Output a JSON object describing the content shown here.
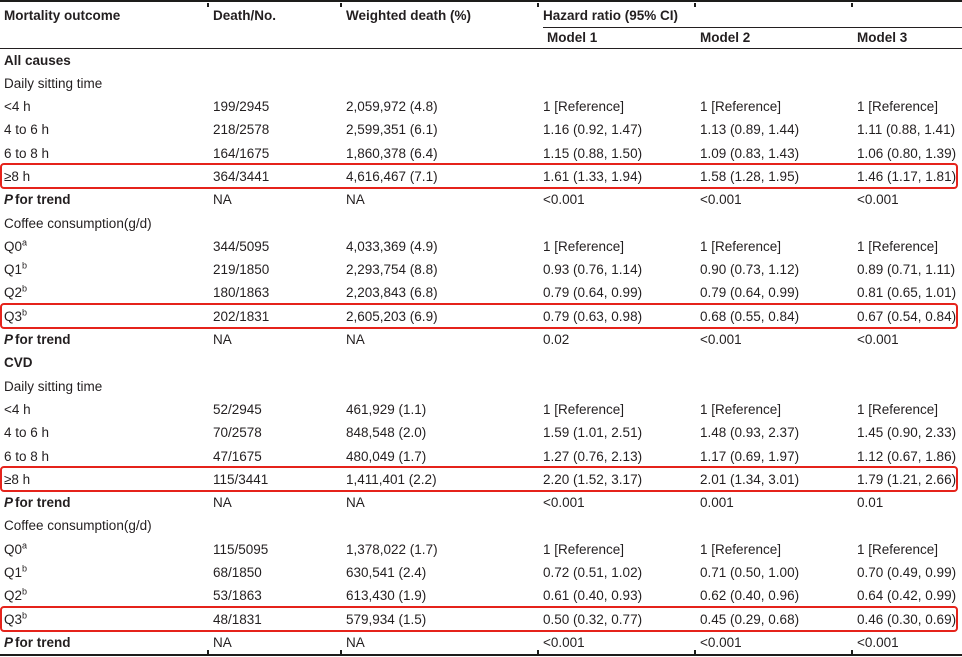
{
  "colors": {
    "text": "#231f20",
    "rule": "#1d1d1b",
    "highlight_border": "#e5231b",
    "background": "#ffffff"
  },
  "table": {
    "headers": {
      "outcome": "Mortality outcome",
      "death_no": "Death/No.",
      "weighted": "Weighted death (%)",
      "hazard": "Hazard ratio (95% CI)",
      "models": [
        "Model 1",
        "Model 2",
        "Model 3"
      ]
    },
    "p_for_trend": {
      "p": "P",
      "rest": "for trend"
    },
    "rows": [
      {
        "kind": "section",
        "label": "All causes"
      },
      {
        "kind": "subsection",
        "label": "Daily sitting time"
      },
      {
        "kind": "data",
        "label": "<4 h",
        "values": [
          "199/2945",
          "2,059,972 (4.8)",
          "1 [Reference]",
          "1 [Reference]",
          "1 [Reference]"
        ]
      },
      {
        "kind": "data",
        "label": "4 to 6 h",
        "values": [
          "218/2578",
          "2,599,351 (6.1)",
          "1.16 (0.92, 1.47)",
          "1.13 (0.89, 1.44)",
          "1.11 (0.88, 1.41)"
        ]
      },
      {
        "kind": "data",
        "label": "6 to 8 h",
        "values": [
          "164/1675",
          "1,860,378 (6.4)",
          "1.15 (0.88, 1.50)",
          "1.09 (0.83, 1.43)",
          "1.06 (0.80, 1.39)"
        ]
      },
      {
        "kind": "data",
        "label": "≥8 h",
        "highlight": true,
        "values": [
          "364/3441",
          "4,616,467 (7.1)",
          "1.61 (1.33, 1.94)",
          "1.58 (1.28, 1.95)",
          "1.46 (1.17, 1.81)"
        ]
      },
      {
        "kind": "ptrend",
        "values": [
          "NA",
          "NA",
          "<0.001",
          "<0.001",
          "<0.001"
        ]
      },
      {
        "kind": "subsection",
        "label": "Coffee consumption(g/d)"
      },
      {
        "kind": "data",
        "label": "Q0",
        "sup": "a",
        "values": [
          "344/5095",
          "4,033,369 (4.9)",
          "1 [Reference]",
          "1 [Reference]",
          "1 [Reference]"
        ]
      },
      {
        "kind": "data",
        "label": "Q1",
        "sup": "b",
        "values": [
          "219/1850",
          "2,293,754 (8.8)",
          "0.93 (0.76, 1.14)",
          "0.90 (0.73, 1.12)",
          "0.89 (0.71, 1.11)"
        ]
      },
      {
        "kind": "data",
        "label": "Q2",
        "sup": "b",
        "values": [
          "180/1863",
          "2,203,843 (6.8)",
          "0.79 (0.64, 0.99)",
          "0.79 (0.64, 0.99)",
          "0.81 (0.65, 1.01)"
        ]
      },
      {
        "kind": "data",
        "label": "Q3",
        "sup": "b",
        "highlight": true,
        "values": [
          "202/1831",
          "2,605,203 (6.9)",
          "0.79 (0.63, 0.98)",
          "0.68 (0.55, 0.84)",
          "0.67 (0.54, 0.84)"
        ]
      },
      {
        "kind": "ptrend",
        "values": [
          "NA",
          "NA",
          "0.02",
          "<0.001",
          "<0.001"
        ]
      },
      {
        "kind": "section",
        "label": "CVD"
      },
      {
        "kind": "subsection",
        "label": "Daily sitting time"
      },
      {
        "kind": "data",
        "label": "<4 h",
        "values": [
          "52/2945",
          "461,929 (1.1)",
          "1 [Reference]",
          "1 [Reference]",
          "1 [Reference]"
        ]
      },
      {
        "kind": "data",
        "label": "4 to 6 h",
        "values": [
          "70/2578",
          "848,548 (2.0)",
          "1.59 (1.01, 2.51)",
          "1.48 (0.93, 2.37)",
          "1.45 (0.90, 2.33)"
        ]
      },
      {
        "kind": "data",
        "label": "6 to 8 h",
        "values": [
          "47/1675",
          "480,049 (1.7)",
          "1.27 (0.76, 2.13)",
          "1.17 (0.69, 1.97)",
          "1.12 (0.67, 1.86)"
        ]
      },
      {
        "kind": "data",
        "label": "≥8 h",
        "highlight": true,
        "values": [
          "115/3441",
          "1,411,401 (2.2)",
          "2.20 (1.52, 3.17)",
          "2.01 (1.34, 3.01)",
          "1.79 (1.21, 2.66)"
        ]
      },
      {
        "kind": "ptrend",
        "values": [
          "NA",
          "NA",
          "<0.001",
          "0.001",
          "0.01"
        ]
      },
      {
        "kind": "subsection",
        "label": "Coffee consumption(g/d)"
      },
      {
        "kind": "data",
        "label": "Q0",
        "sup": "a",
        "values": [
          "115/5095",
          "1,378,022 (1.7)",
          "1 [Reference]",
          "1 [Reference]",
          "1 [Reference]"
        ]
      },
      {
        "kind": "data",
        "label": "Q1",
        "sup": "b",
        "values": [
          "68/1850",
          "630,541 (2.4)",
          "0.72 (0.51, 1.02)",
          "0.71 (0.50, 1.00)",
          "0.70 (0.49, 0.99)"
        ]
      },
      {
        "kind": "data",
        "label": "Q2",
        "sup": "b",
        "values": [
          "53/1863",
          "613,430 (1.9)",
          "0.61 (0.40, 0.93)",
          "0.62 (0.40, 0.96)",
          "0.64 (0.42, 0.99)"
        ]
      },
      {
        "kind": "data",
        "label": "Q3",
        "sup": "b",
        "highlight": true,
        "values": [
          "48/1831",
          "579,934 (1.5)",
          "0.50 (0.32, 0.77)",
          "0.45 (0.29, 0.68)",
          "0.46 (0.30, 0.69)"
        ]
      },
      {
        "kind": "ptrend",
        "values": [
          "NA",
          "NA",
          "<0.001",
          "<0.001",
          "<0.001"
        ]
      }
    ]
  }
}
